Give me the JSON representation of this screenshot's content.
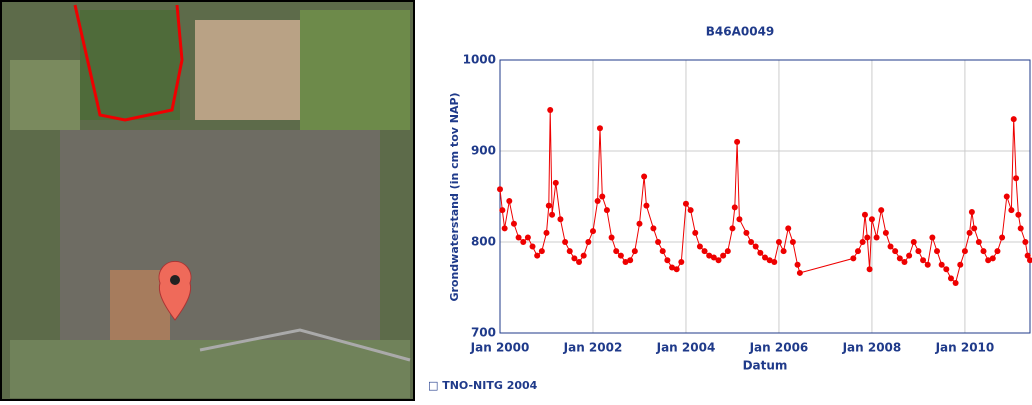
{
  "chart_data": {
    "type": "line",
    "title": "B46A0049",
    "x_label": "Datum",
    "y_label": "Grondwaterstand (in cm tov NAP)",
    "credit": "□ TNO-NITG 2004",
    "xlim": [
      2000,
      2011.4
    ],
    "ylim": [
      700,
      1000
    ],
    "xticks": [
      {
        "value": 2000,
        "label": "Jan 2000"
      },
      {
        "value": 2002,
        "label": "Jan 2002"
      },
      {
        "value": 2004,
        "label": "Jan 2004"
      },
      {
        "value": 2006,
        "label": "Jan 2006"
      },
      {
        "value": 2008,
        "label": "Jan 2008"
      },
      {
        "value": 2010,
        "label": "Jan 2010"
      }
    ],
    "yticks": [
      700,
      800,
      900,
      1000
    ],
    "grid": true,
    "x": [
      2000.0,
      2000.05,
      2000.1,
      2000.2,
      2000.3,
      2000.4,
      2000.5,
      2000.6,
      2000.7,
      2000.8,
      2000.9,
      2001.0,
      2001.05,
      2001.08,
      2001.12,
      2001.2,
      2001.3,
      2001.4,
      2001.5,
      2001.6,
      2001.7,
      2001.8,
      2001.9,
      2002.0,
      2002.1,
      2002.15,
      2002.2,
      2002.3,
      2002.4,
      2002.5,
      2002.6,
      2002.7,
      2002.8,
      2002.9,
      2003.0,
      2003.1,
      2003.15,
      2003.3,
      2003.4,
      2003.5,
      2003.6,
      2003.7,
      2003.8,
      2003.9,
      2004.0,
      2004.1,
      2004.2,
      2004.3,
      2004.4,
      2004.5,
      2004.6,
      2004.7,
      2004.8,
      2004.9,
      2005.0,
      2005.05,
      2005.1,
      2005.15,
      2005.3,
      2005.4,
      2005.5,
      2005.6,
      2005.7,
      2005.8,
      2005.9,
      2006.0,
      2006.1,
      2006.2,
      2006.3,
      2006.4,
      2006.45,
      2007.6,
      2007.7,
      2007.8,
      2007.85,
      2007.9,
      2007.95,
      2008.0,
      2008.1,
      2008.2,
      2008.3,
      2008.4,
      2008.5,
      2008.6,
      2008.7,
      2008.8,
      2008.9,
      2009.0,
      2009.1,
      2009.2,
      2009.3,
      2009.4,
      2009.5,
      2009.6,
      2009.7,
      2009.8,
      2009.9,
      2010.0,
      2010.1,
      2010.15,
      2010.2,
      2010.3,
      2010.4,
      2010.5,
      2010.6,
      2010.7,
      2010.8,
      2010.9,
      2011.0,
      2011.05,
      2011.1,
      2011.15,
      2011.2,
      2011.3,
      2011.35,
      2011.4
    ],
    "series": [
      {
        "name": "B46A0049",
        "color": "#ee0000",
        "values": [
          858,
          835,
          815,
          845,
          820,
          805,
          800,
          805,
          795,
          785,
          790,
          810,
          840,
          945,
          830,
          865,
          825,
          800,
          790,
          782,
          778,
          785,
          800,
          812,
          845,
          925,
          850,
          835,
          805,
          790,
          785,
          778,
          780,
          790,
          820,
          872,
          840,
          815,
          800,
          790,
          780,
          772,
          770,
          778,
          842,
          835,
          810,
          795,
          790,
          785,
          783,
          780,
          785,
          790,
          815,
          838,
          910,
          825,
          810,
          800,
          795,
          788,
          783,
          780,
          778,
          800,
          790,
          815,
          800,
          775,
          766,
          782,
          790,
          800,
          830,
          805,
          770,
          825,
          805,
          835,
          810,
          795,
          790,
          782,
          778,
          785,
          800,
          790,
          780,
          775,
          805,
          790,
          775,
          770,
          760,
          755,
          775,
          790,
          810,
          833,
          815,
          800,
          790,
          780,
          782,
          790,
          805,
          850,
          835,
          935,
          870,
          830,
          815,
          800,
          785,
          780
        ]
      }
    ]
  }
}
